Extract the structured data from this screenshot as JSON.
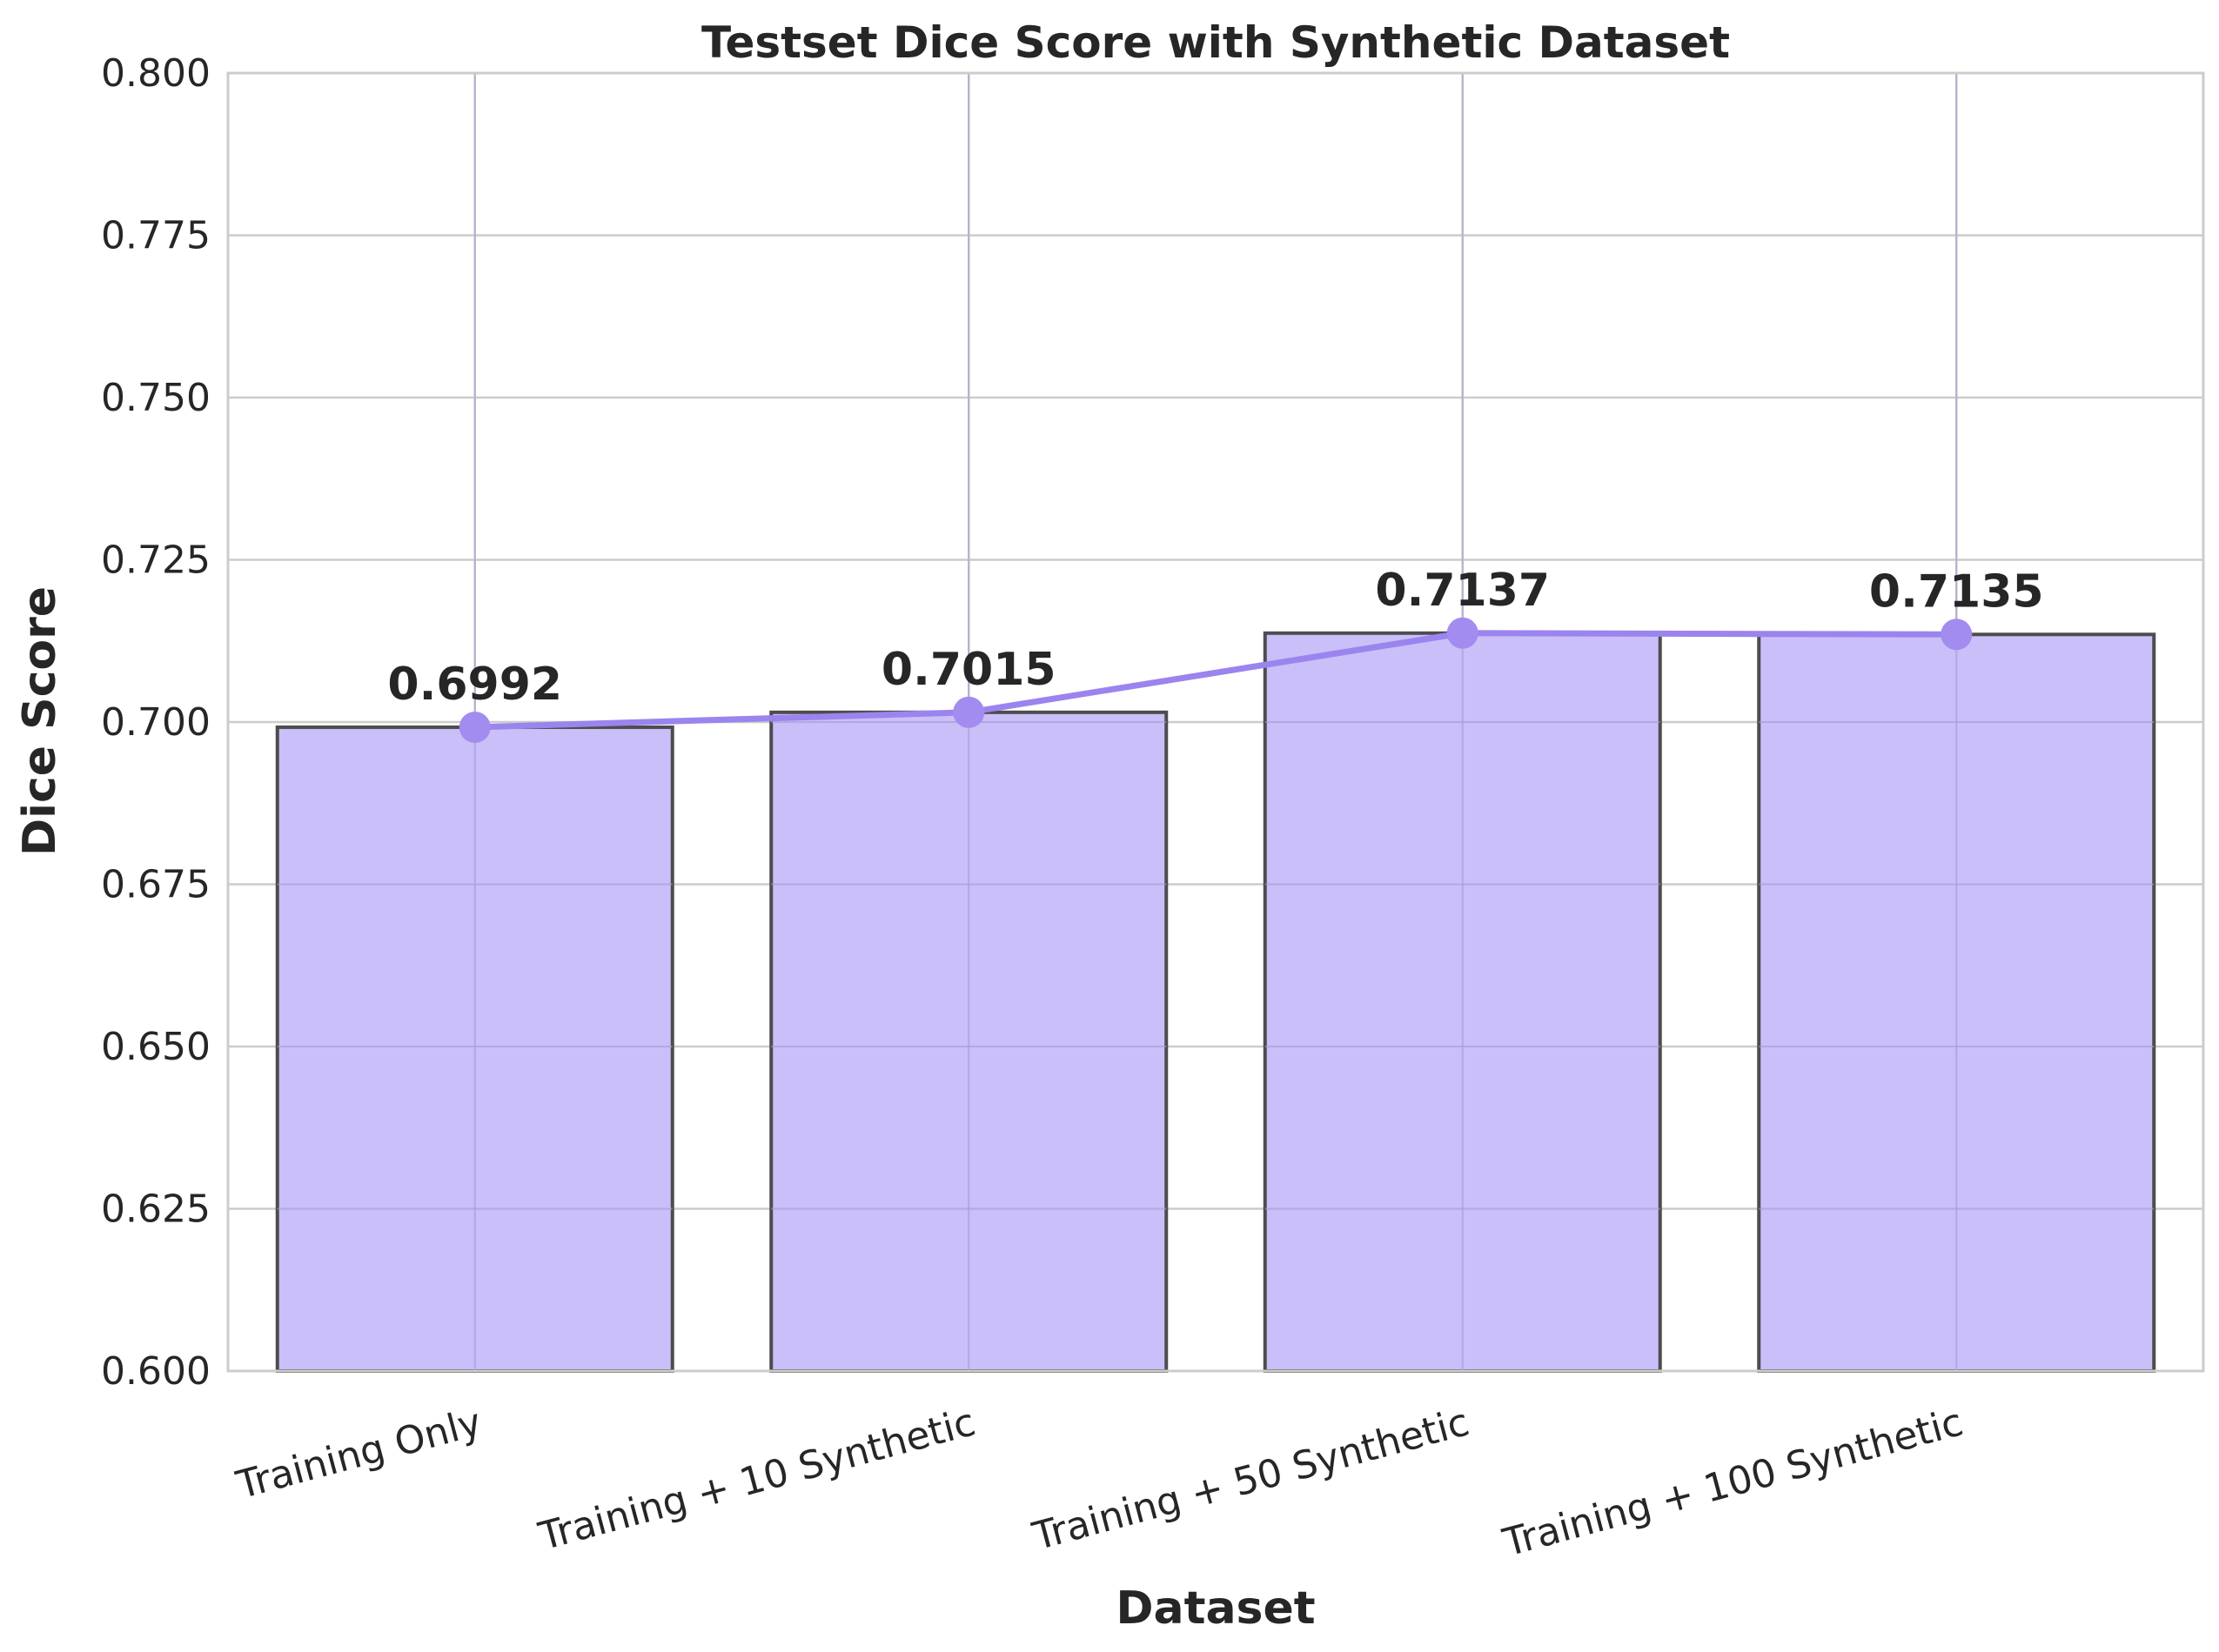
{
  "chart_data": {
    "type": "bar",
    "title": "Testset Dice Score with Synthetic Dataset",
    "xlabel": "Dataset",
    "ylabel": "Dice Score",
    "categories": [
      "Training Only",
      "Training + 10 Synthetic",
      "Training + 50 Synthetic",
      "Training + 100 Synthetic"
    ],
    "values": [
      0.6992,
      0.7015,
      0.7137,
      0.7135
    ],
    "data_labels": [
      "0.6992",
      "0.7015",
      "0.7137",
      "0.7135"
    ],
    "overlay_line": true,
    "ylim": [
      0.6,
      0.8
    ],
    "yticks": [
      "0.600",
      "0.625",
      "0.650",
      "0.675",
      "0.700",
      "0.725",
      "0.750",
      "0.775",
      "0.800"
    ],
    "grid": true,
    "colors": {
      "bar_fill": "#c6baf7",
      "bar_edge": "#4d4d4d",
      "line": "#9b84ee",
      "marker": "#a38cf0",
      "grid": "#cccccc",
      "text": "#262626"
    }
  }
}
